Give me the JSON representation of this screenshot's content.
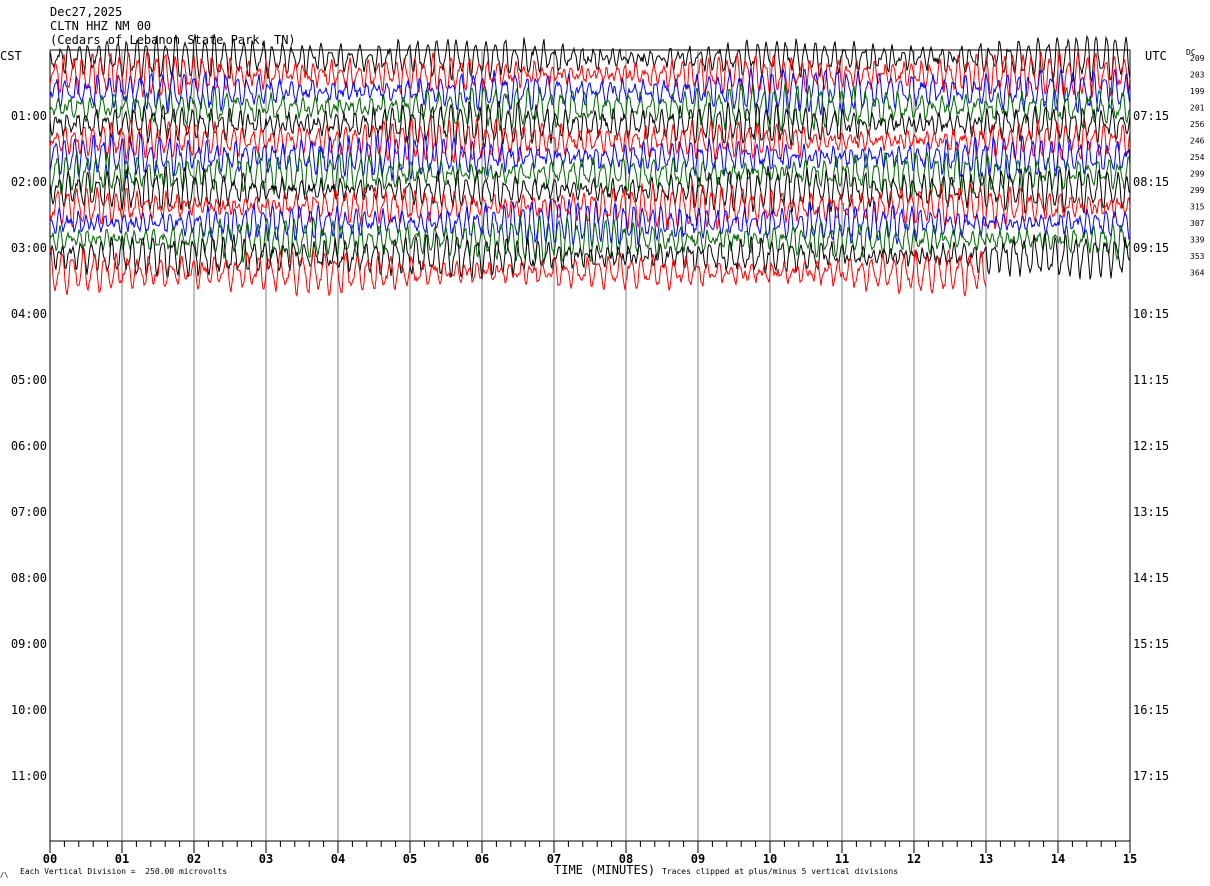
{
  "header": {
    "date": "Dec27,2025",
    "station": "CLTN HHZ NM 00",
    "location": "(Cedars of Lebanon State Park, TN)"
  },
  "left_axis_title": "CST",
  "right_axis_title": "UTC",
  "dc_title": "DC",
  "footer": {
    "division_note": "Each Vertical Division =  250.00 microvolts",
    "clip_note": "Traces clipped at plus/minus 5 vertical divisions",
    "corner_mark": "/\\"
  },
  "chart_data": {
    "type": "line",
    "title": "",
    "xlabel": "TIME (MINUTES)",
    "ylabel": "",
    "xlim": [
      0,
      15
    ],
    "x_ticks": [
      "00",
      "01",
      "02",
      "03",
      "04",
      "05",
      "06",
      "07",
      "08",
      "09",
      "10",
      "11",
      "12",
      "13",
      "14",
      "15"
    ],
    "left_hour_labels": [
      "01:00",
      "02:00",
      "03:00",
      "04:00",
      "05:00",
      "06:00",
      "07:00",
      "08:00",
      "09:00",
      "10:00",
      "11:00"
    ],
    "right_hour_labels": [
      "07:15",
      "08:15",
      "09:15",
      "10:15",
      "11:15",
      "12:15",
      "13:15",
      "14:15",
      "15:15",
      "16:15",
      "17:15"
    ],
    "trace_colors": [
      "#000000",
      "#ff0000",
      "#0000ff",
      "#006400"
    ],
    "trace_interval_minutes": 15,
    "num_traces": 14,
    "last_trace_end_minute": 13,
    "dc_offsets": [
      209,
      203,
      199,
      201,
      256,
      246,
      254,
      299,
      299,
      315,
      307,
      339,
      353,
      364
    ],
    "grid": "vertical lines at each minute"
  }
}
